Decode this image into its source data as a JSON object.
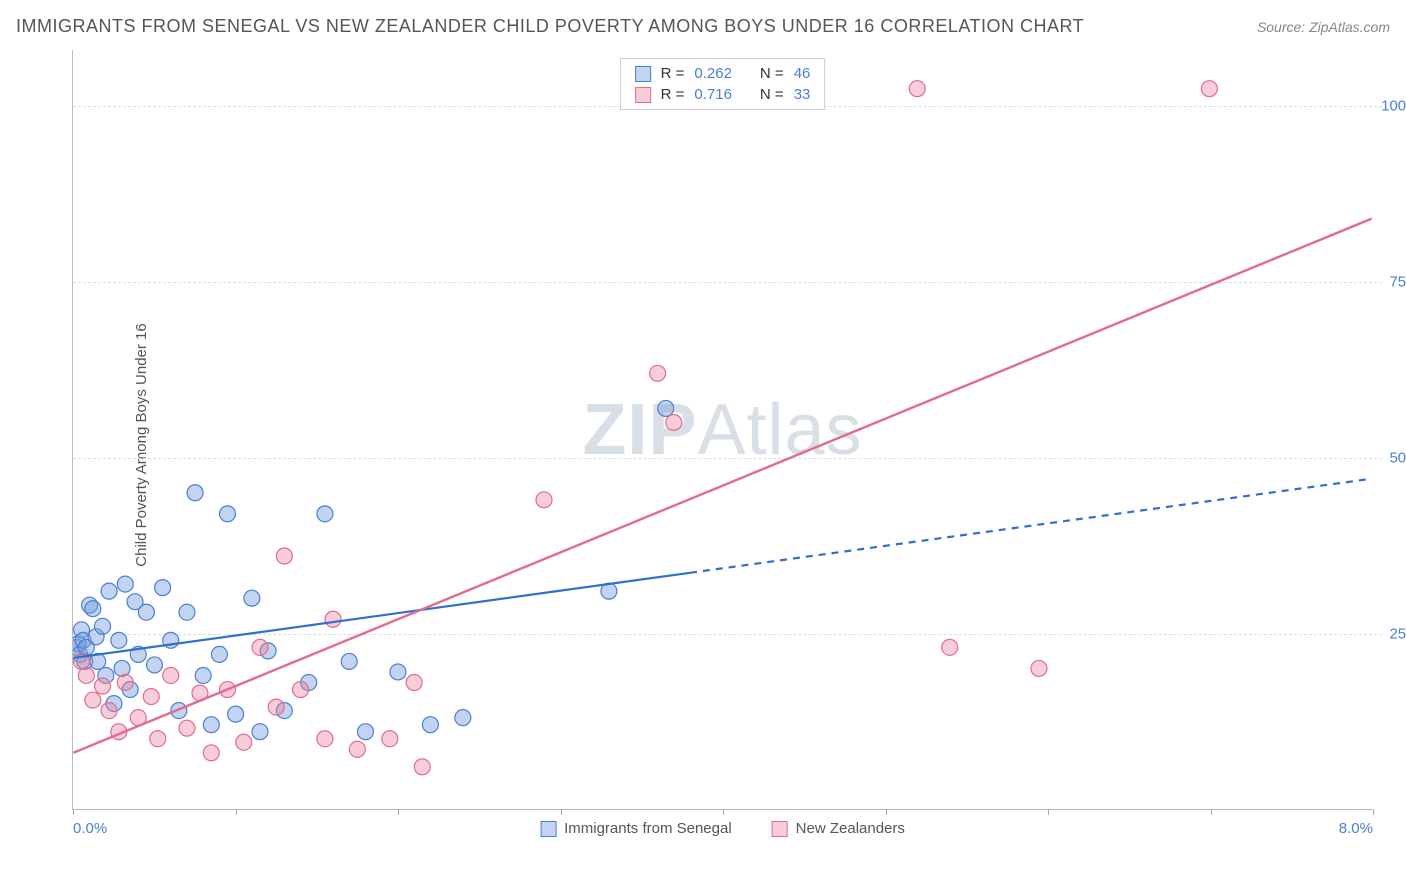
{
  "title": "IMMIGRANTS FROM SENEGAL VS NEW ZEALANDER CHILD POVERTY AMONG BOYS UNDER 16 CORRELATION CHART",
  "source": "Source: ZipAtlas.com",
  "y_axis_label": "Child Poverty Among Boys Under 16",
  "watermark_bold": "ZIP",
  "watermark_rest": "Atlas",
  "chart": {
    "type": "scatter-with-regression",
    "xlim": [
      0.0,
      8.0
    ],
    "ylim": [
      0.0,
      108.0
    ],
    "x_ticks": [
      0.0,
      1.0,
      2.0,
      3.0,
      4.0,
      5.0,
      6.0,
      7.0,
      8.0
    ],
    "x_tick_labels_shown": {
      "0": "0.0%",
      "8": "8.0%"
    },
    "y_ticks": [
      25.0,
      50.0,
      75.0,
      100.0
    ],
    "y_tick_labels": {
      "25": "25.0%",
      "50": "50.0%",
      "75": "75.0%",
      "100": "100.0%"
    },
    "grid_color": "#dddddd",
    "background_color": "#ffffff",
    "axis_color": "#bbbbbb",
    "tick_label_color": "#4a7fd4",
    "series": [
      {
        "name": "Immigrants from Senegal",
        "marker_color_fill": "rgba(120,160,220,0.45)",
        "marker_color_stroke": "#4a7fd4",
        "marker_radius": 8,
        "line_color": "#2f6fd0",
        "line_width": 2.2,
        "line_dash_solid_until_x": 3.8,
        "R": "0.262",
        "N": "46",
        "regression": {
          "x1": 0.0,
          "y1": 21.5,
          "x2": 8.0,
          "y2": 47.0
        },
        "points": [
          [
            0.02,
            23.0
          ],
          [
            0.03,
            23.5
          ],
          [
            0.04,
            22.0
          ],
          [
            0.05,
            25.5
          ],
          [
            0.06,
            24.0
          ],
          [
            0.07,
            21.0
          ],
          [
            0.08,
            23.0
          ],
          [
            0.1,
            29.0
          ],
          [
            0.12,
            28.5
          ],
          [
            0.14,
            24.5
          ],
          [
            0.15,
            21.0
          ],
          [
            0.18,
            26.0
          ],
          [
            0.2,
            19.0
          ],
          [
            0.22,
            31.0
          ],
          [
            0.25,
            15.0
          ],
          [
            0.28,
            24.0
          ],
          [
            0.3,
            20.0
          ],
          [
            0.32,
            32.0
          ],
          [
            0.35,
            17.0
          ],
          [
            0.38,
            29.5
          ],
          [
            0.4,
            22.0
          ],
          [
            0.45,
            28.0
          ],
          [
            0.5,
            20.5
          ],
          [
            0.55,
            31.5
          ],
          [
            0.6,
            24.0
          ],
          [
            0.65,
            14.0
          ],
          [
            0.7,
            28.0
          ],
          [
            0.75,
            45.0
          ],
          [
            0.8,
            19.0
          ],
          [
            0.85,
            12.0
          ],
          [
            0.9,
            22.0
          ],
          [
            0.95,
            42.0
          ],
          [
            1.0,
            13.5
          ],
          [
            1.1,
            30.0
          ],
          [
            1.15,
            11.0
          ],
          [
            1.2,
            22.5
          ],
          [
            1.3,
            14.0
          ],
          [
            1.45,
            18.0
          ],
          [
            1.55,
            42.0
          ],
          [
            1.7,
            21.0
          ],
          [
            1.8,
            11.0
          ],
          [
            2.0,
            19.5
          ],
          [
            2.2,
            12.0
          ],
          [
            2.4,
            13.0
          ],
          [
            3.3,
            31.0
          ],
          [
            3.65,
            57.0
          ]
        ]
      },
      {
        "name": "New Zealanders",
        "marker_color_fill": "rgba(235,130,160,0.40)",
        "marker_color_stroke": "#e26b8f",
        "marker_radius": 8,
        "line_color": "#e26b8f",
        "line_width": 2.4,
        "line_dash_solid_until_x": 8.0,
        "R": "0.716",
        "N": "33",
        "regression": {
          "x1": 0.0,
          "y1": 8.0,
          "x2": 8.0,
          "y2": 84.0
        },
        "points": [
          [
            0.05,
            21.0
          ],
          [
            0.08,
            19.0
          ],
          [
            0.12,
            15.5
          ],
          [
            0.18,
            17.5
          ],
          [
            0.22,
            14.0
          ],
          [
            0.28,
            11.0
          ],
          [
            0.32,
            18.0
          ],
          [
            0.4,
            13.0
          ],
          [
            0.48,
            16.0
          ],
          [
            0.52,
            10.0
          ],
          [
            0.6,
            19.0
          ],
          [
            0.7,
            11.5
          ],
          [
            0.78,
            16.5
          ],
          [
            0.85,
            8.0
          ],
          [
            0.95,
            17.0
          ],
          [
            1.05,
            9.5
          ],
          [
            1.15,
            23.0
          ],
          [
            1.25,
            14.5
          ],
          [
            1.3,
            36.0
          ],
          [
            1.4,
            17.0
          ],
          [
            1.55,
            10.0
          ],
          [
            1.6,
            27.0
          ],
          [
            1.75,
            8.5
          ],
          [
            1.95,
            10.0
          ],
          [
            2.1,
            18.0
          ],
          [
            2.15,
            6.0
          ],
          [
            2.9,
            44.0
          ],
          [
            3.6,
            62.0
          ],
          [
            3.7,
            55.0
          ],
          [
            5.2,
            102.5
          ],
          [
            5.4,
            23.0
          ],
          [
            5.95,
            20.0
          ],
          [
            7.0,
            102.5
          ]
        ]
      }
    ],
    "legend_top": {
      "r_label": "R =",
      "n_label": "N ="
    },
    "legend_bottom_labels": [
      "Immigrants from Senegal",
      "New Zealanders"
    ]
  }
}
